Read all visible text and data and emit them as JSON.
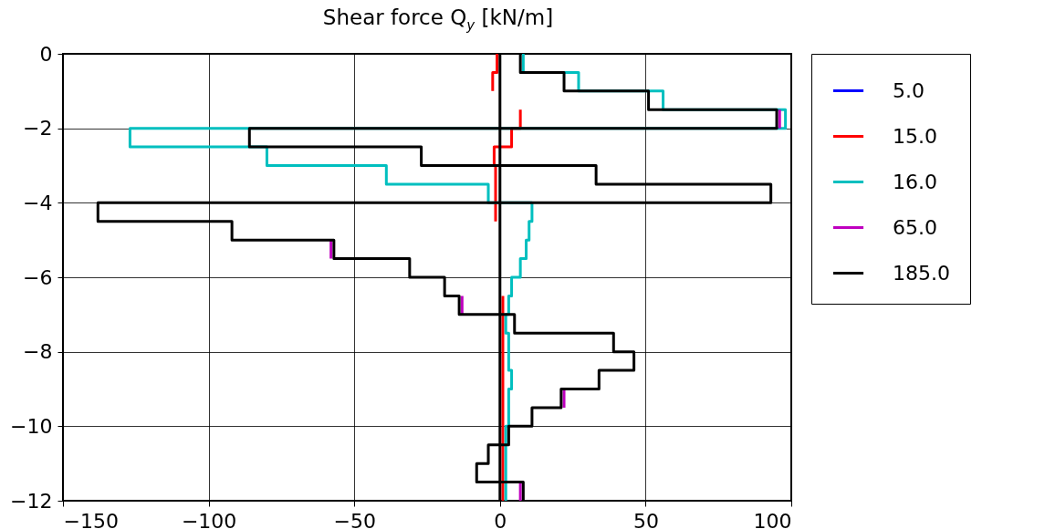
{
  "chart_data": {
    "type": "line",
    "title": "Shear force Q$_{y}$ [kN/m]",
    "xlim": [
      -150,
      100
    ],
    "xticks": [
      -150,
      -100,
      -50,
      0,
      50,
      100
    ],
    "ylim": [
      -12,
      0
    ],
    "yticks": [
      -12,
      -10,
      -8,
      -6,
      -4,
      -2,
      0
    ],
    "grid": true,
    "legend": "right",
    "line_style": "solid",
    "marker": "none",
    "ref_lines": [
      {
        "axis": "x",
        "value": 0,
        "color": "#000000"
      }
    ],
    "series": [
      {
        "name": "5.0",
        "color": "#0000ff",
        "x": [
          null,
          null
        ],
        "values": [
          null,
          null
        ]
      },
      {
        "name": "15.0",
        "color": "#ff0000",
        "x": [
          -1,
          -1,
          -2.5,
          -2.5,
          null,
          null,
          7,
          7,
          4,
          4,
          -2,
          -2,
          -1.5,
          -1.5,
          null,
          null,
          1,
          1
        ],
        "values": [
          0,
          -0.5,
          -0.5,
          -1,
          null,
          null,
          -1.5,
          -2,
          -2,
          -2.5,
          -2.5,
          -3,
          -3,
          -4.5,
          null,
          null,
          -6.5,
          -12
        ]
      },
      {
        "name": "16.0",
        "color": "#00bfbf",
        "x": [
          8,
          8,
          27,
          27,
          56,
          56,
          98,
          98,
          -127,
          -127,
          -80,
          -80,
          -39,
          -39,
          -4,
          -4,
          11,
          11,
          10,
          10,
          9,
          9,
          7,
          7,
          4,
          4,
          3,
          3,
          2,
          2,
          3,
          3,
          4,
          4,
          3,
          3,
          2,
          2
        ],
        "values": [
          0,
          -0.5,
          -0.5,
          -1,
          -1,
          -1.5,
          -1.5,
          -2,
          -2,
          -2.5,
          -2.5,
          -3,
          -3,
          -3.5,
          -3.5,
          -4,
          -4,
          -4.5,
          -4.5,
          -5,
          -5,
          -5.5,
          -5.5,
          -6,
          -6,
          -6.5,
          -6.5,
          -7,
          -7,
          -7.5,
          -7.5,
          -8.5,
          -8.5,
          -9,
          -9,
          -10,
          -10,
          -12
        ]
      },
      {
        "name": "65.0",
        "color": "#bf00bf",
        "x": [
          null,
          null,
          null,
          null,
          null,
          null,
          96,
          96,
          null,
          null,
          null,
          null,
          null,
          null,
          null,
          null,
          null,
          null,
          null,
          null,
          -58,
          -58,
          null,
          null,
          null,
          null,
          -13,
          -13,
          null,
          null,
          null,
          null,
          null,
          null,
          null,
          null,
          22,
          22,
          null,
          null,
          null,
          null,
          null,
          null,
          null,
          null,
          7,
          7
        ],
        "values": [
          null,
          null,
          null,
          null,
          null,
          null,
          -1.5,
          -2,
          null,
          null,
          null,
          null,
          null,
          null,
          null,
          null,
          null,
          null,
          null,
          null,
          -5,
          -5.5,
          null,
          null,
          null,
          null,
          -6.5,
          -7,
          null,
          null,
          null,
          null,
          null,
          null,
          null,
          null,
          -9,
          -9.5,
          null,
          null,
          null,
          null,
          null,
          null,
          null,
          null,
          -11.5,
          -12
        ]
      },
      {
        "name": "185.0",
        "color": "#000000",
        "x": [
          7,
          7,
          22,
          22,
          51,
          51,
          95,
          95,
          -86,
          -86,
          -27,
          -27,
          33,
          33,
          93,
          93,
          -138,
          -138,
          -92,
          -92,
          -57,
          -57,
          -31,
          -31,
          -19,
          -19,
          -14,
          -14,
          5,
          5,
          39,
          39,
          46,
          46,
          34,
          34,
          21,
          21,
          11,
          11,
          3,
          3,
          -4,
          -4,
          -8,
          -8,
          8,
          8
        ],
        "values": [
          0,
          -0.5,
          -0.5,
          -1,
          -1,
          -1.5,
          -1.5,
          -2,
          -2,
          -2.5,
          -2.5,
          -3,
          -3,
          -3.5,
          -3.5,
          -4,
          -4,
          -4.5,
          -4.5,
          -5,
          -5,
          -5.5,
          -5.5,
          -6,
          -6,
          -6.5,
          -6.5,
          -7,
          -7,
          -7.5,
          -7.5,
          -8,
          -8,
          -8.5,
          -8.5,
          -9,
          -9,
          -9.5,
          -9.5,
          -10,
          -10,
          -10.5,
          -10.5,
          -11,
          -11,
          -11.5,
          -11.5,
          -12
        ]
      }
    ]
  }
}
